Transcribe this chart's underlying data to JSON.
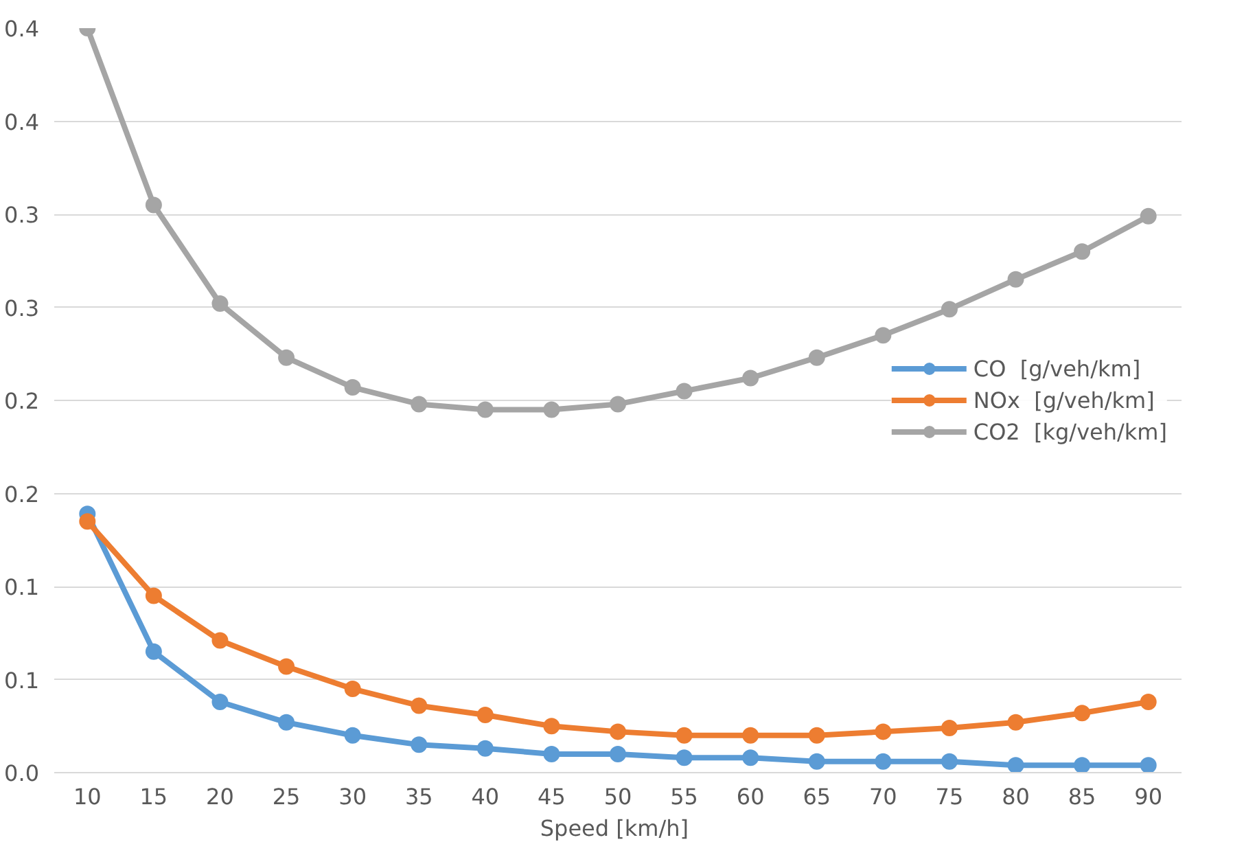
{
  "chart_data": {
    "type": "line",
    "xlabel": "Speed  [km/h]",
    "categories": [
      "10",
      "15",
      "20",
      "25",
      "30",
      "35",
      "40",
      "45",
      "50",
      "55",
      "60",
      "65",
      "70",
      "75",
      "80",
      "85",
      "90"
    ],
    "series": [
      {
        "name": "CO  [g/veh/km]",
        "color": "#5b9bd5",
        "values": [
          0.139,
          0.065,
          0.038,
          0.027,
          0.02,
          0.015,
          0.013,
          0.01,
          0.01,
          0.008,
          0.008,
          0.006,
          0.006,
          0.006,
          0.004,
          0.004,
          0.004
        ]
      },
      {
        "name": "NOx  [g/veh/km]",
        "color": "#ed7d31",
        "values": [
          0.135,
          0.095,
          0.071,
          0.057,
          0.045,
          0.036,
          0.031,
          0.025,
          0.022,
          0.02,
          0.02,
          0.02,
          0.022,
          0.024,
          0.027,
          0.032,
          0.038
        ]
      },
      {
        "name": "CO2  [kg/veh/km]",
        "color": "#a5a5a5",
        "values": [
          0.4,
          0.305,
          0.252,
          0.223,
          0.207,
          0.198,
          0.195,
          0.195,
          0.198,
          0.205,
          0.212,
          0.223,
          0.235,
          0.249,
          0.265,
          0.28,
          0.299
        ]
      }
    ],
    "ylim": [
      0,
      0.4
    ],
    "yticks": [
      {
        "value": 0,
        "label": "0.0"
      },
      {
        "value": 0.05,
        "label": "0.1"
      },
      {
        "value": 0.1,
        "label": "0.1"
      },
      {
        "value": 0.15,
        "label": "0.2"
      },
      {
        "value": 0.2,
        "label": "0.2"
      },
      {
        "value": 0.25,
        "label": "0.3"
      },
      {
        "value": 0.3,
        "label": "0.3"
      },
      {
        "value": 0.35,
        "label": "0.4"
      },
      {
        "value": 0.4,
        "label": "0.4"
      }
    ],
    "grid": "y",
    "legend": "right",
    "marker": "circle",
    "line_style": "solid"
  }
}
